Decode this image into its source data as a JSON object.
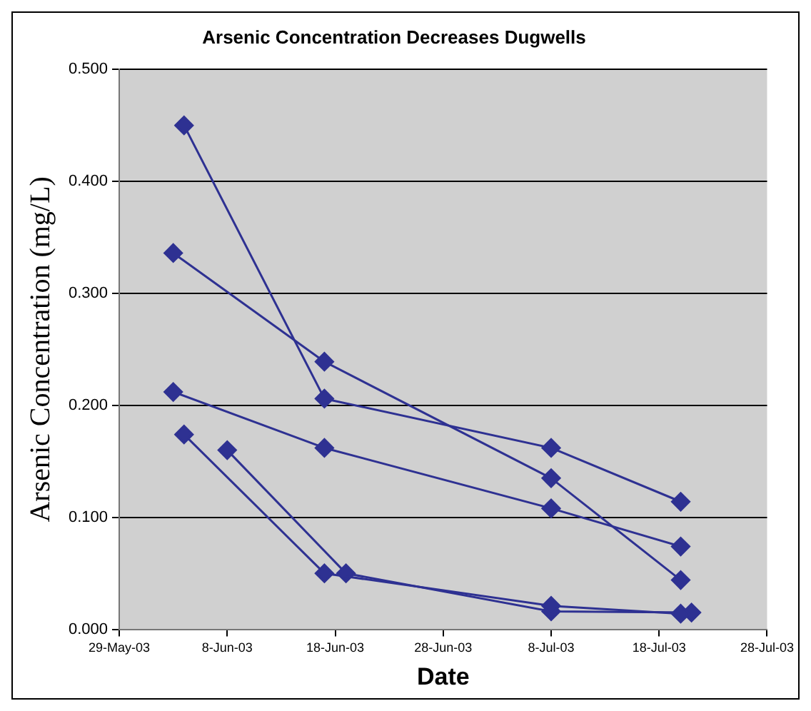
{
  "chart_data": {
    "type": "line",
    "title": "Arsenic Concentration Decreases Dugwells",
    "xlabel": "Date",
    "ylabel": "Arsenic Concentration (mg/L)",
    "series": [
      {
        "color": "#2e3192",
        "x": [
          "--06-04",
          "--06-17",
          "--07-08",
          "--07-20"
        ],
        "values": [
          0.45,
          0.206,
          0.162,
          0.114
        ]
      },
      {
        "color": "#2e3192",
        "x": [
          "--06-03",
          "--06-17",
          "--07-08",
          "--07-20"
        ],
        "values": [
          0.336,
          0.239,
          0.135,
          0.044
        ]
      },
      {
        "color": "#2e3192",
        "x": [
          "--06-03",
          "--06-17",
          "--07-08",
          "--07-20"
        ],
        "values": [
          0.212,
          0.162,
          0.108,
          0.074
        ]
      },
      {
        "color": "#2e3192",
        "x": [
          "--06-04",
          "--06-17",
          "--07-08",
          "--07-20"
        ],
        "values": [
          0.174,
          0.05,
          0.021,
          0.014
        ]
      },
      {
        "color": "#2e3192",
        "x": [
          "--06-08",
          "--06-19",
          "--07-08",
          "--07-21"
        ],
        "values": [
          0.16,
          0.05,
          0.016,
          0.015
        ]
      }
    ],
    "xlim": [
      "--05-29",
      "--07-28"
    ],
    "xticks": [
      {
        "value": "--05-29",
        "label": "29-May-03"
      },
      {
        "value": "--06-08",
        "label": "8-Jun-03"
      },
      {
        "value": "--06-18",
        "label": "18-Jun-03"
      },
      {
        "value": "--06-28",
        "label": "28-Jun-03"
      },
      {
        "value": "--07-08",
        "label": "8-Jul-03"
      },
      {
        "value": "--07-18",
        "label": "18-Jul-03"
      },
      {
        "value": "--07-28",
        "label": "28-Jul-03"
      }
    ],
    "ylim": [
      0,
      0.5
    ],
    "yticks": [
      {
        "value": 0,
        "label": "0.000"
      },
      {
        "value": 0.1,
        "label": "0.100"
      },
      {
        "value": 0.2,
        "label": "0.200"
      },
      {
        "value": 0.3,
        "label": "0.300"
      },
      {
        "value": 0.4,
        "label": "0.400"
      },
      {
        "value": 0.5,
        "label": "0.500"
      }
    ],
    "grid": "y",
    "legend": false,
    "marker": "diamond",
    "line_style": "solid"
  }
}
